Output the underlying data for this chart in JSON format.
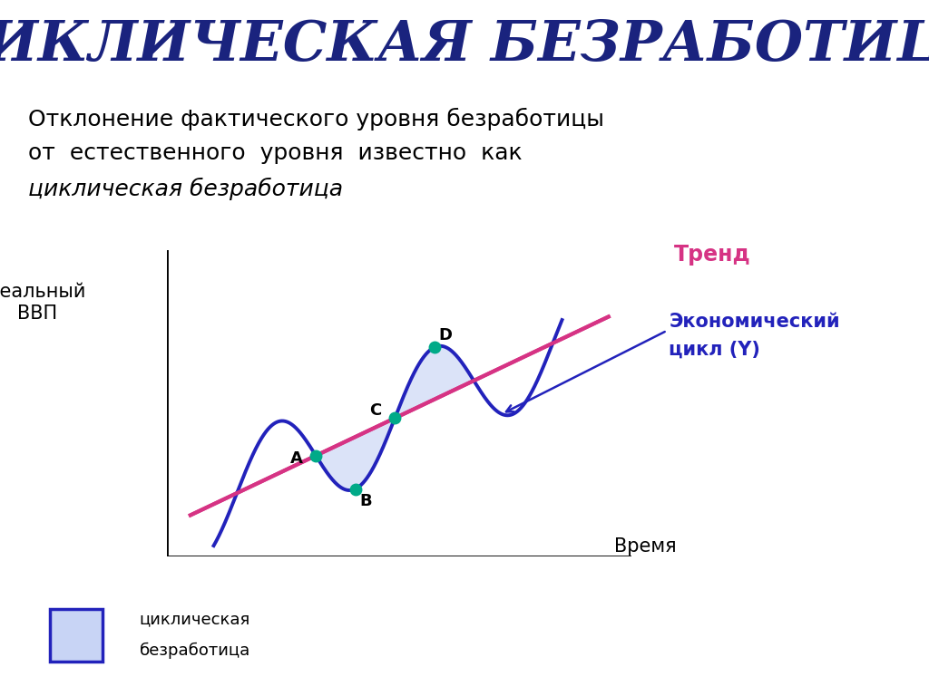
{
  "title": "ЦИКЛИЧЕСКАЯ БЕЗРАБОТИЦА",
  "title_color": "#1a237e",
  "subtitle_line1": "Отклонение фактического уровня безработицы",
  "subtitle_line2": "от  естественного  уровня  известно  как",
  "subtitle_line3": "циклическая безработица",
  "ylabel": "Реальный\nВВП",
  "xlabel": "Время",
  "trend_label": "Тренд",
  "trend_color": "#d63384",
  "cycle_label_line1": "Экономический",
  "cycle_label_line2": "цикл (Y)",
  "cycle_color": "#2222bb",
  "legend_label1": "циклическая",
  "legend_label2": "безработица",
  "fill_color": "#c8d4f5",
  "fill_alpha": 0.65,
  "point_color": "#00aa88",
  "bg_color": "#ffffff"
}
